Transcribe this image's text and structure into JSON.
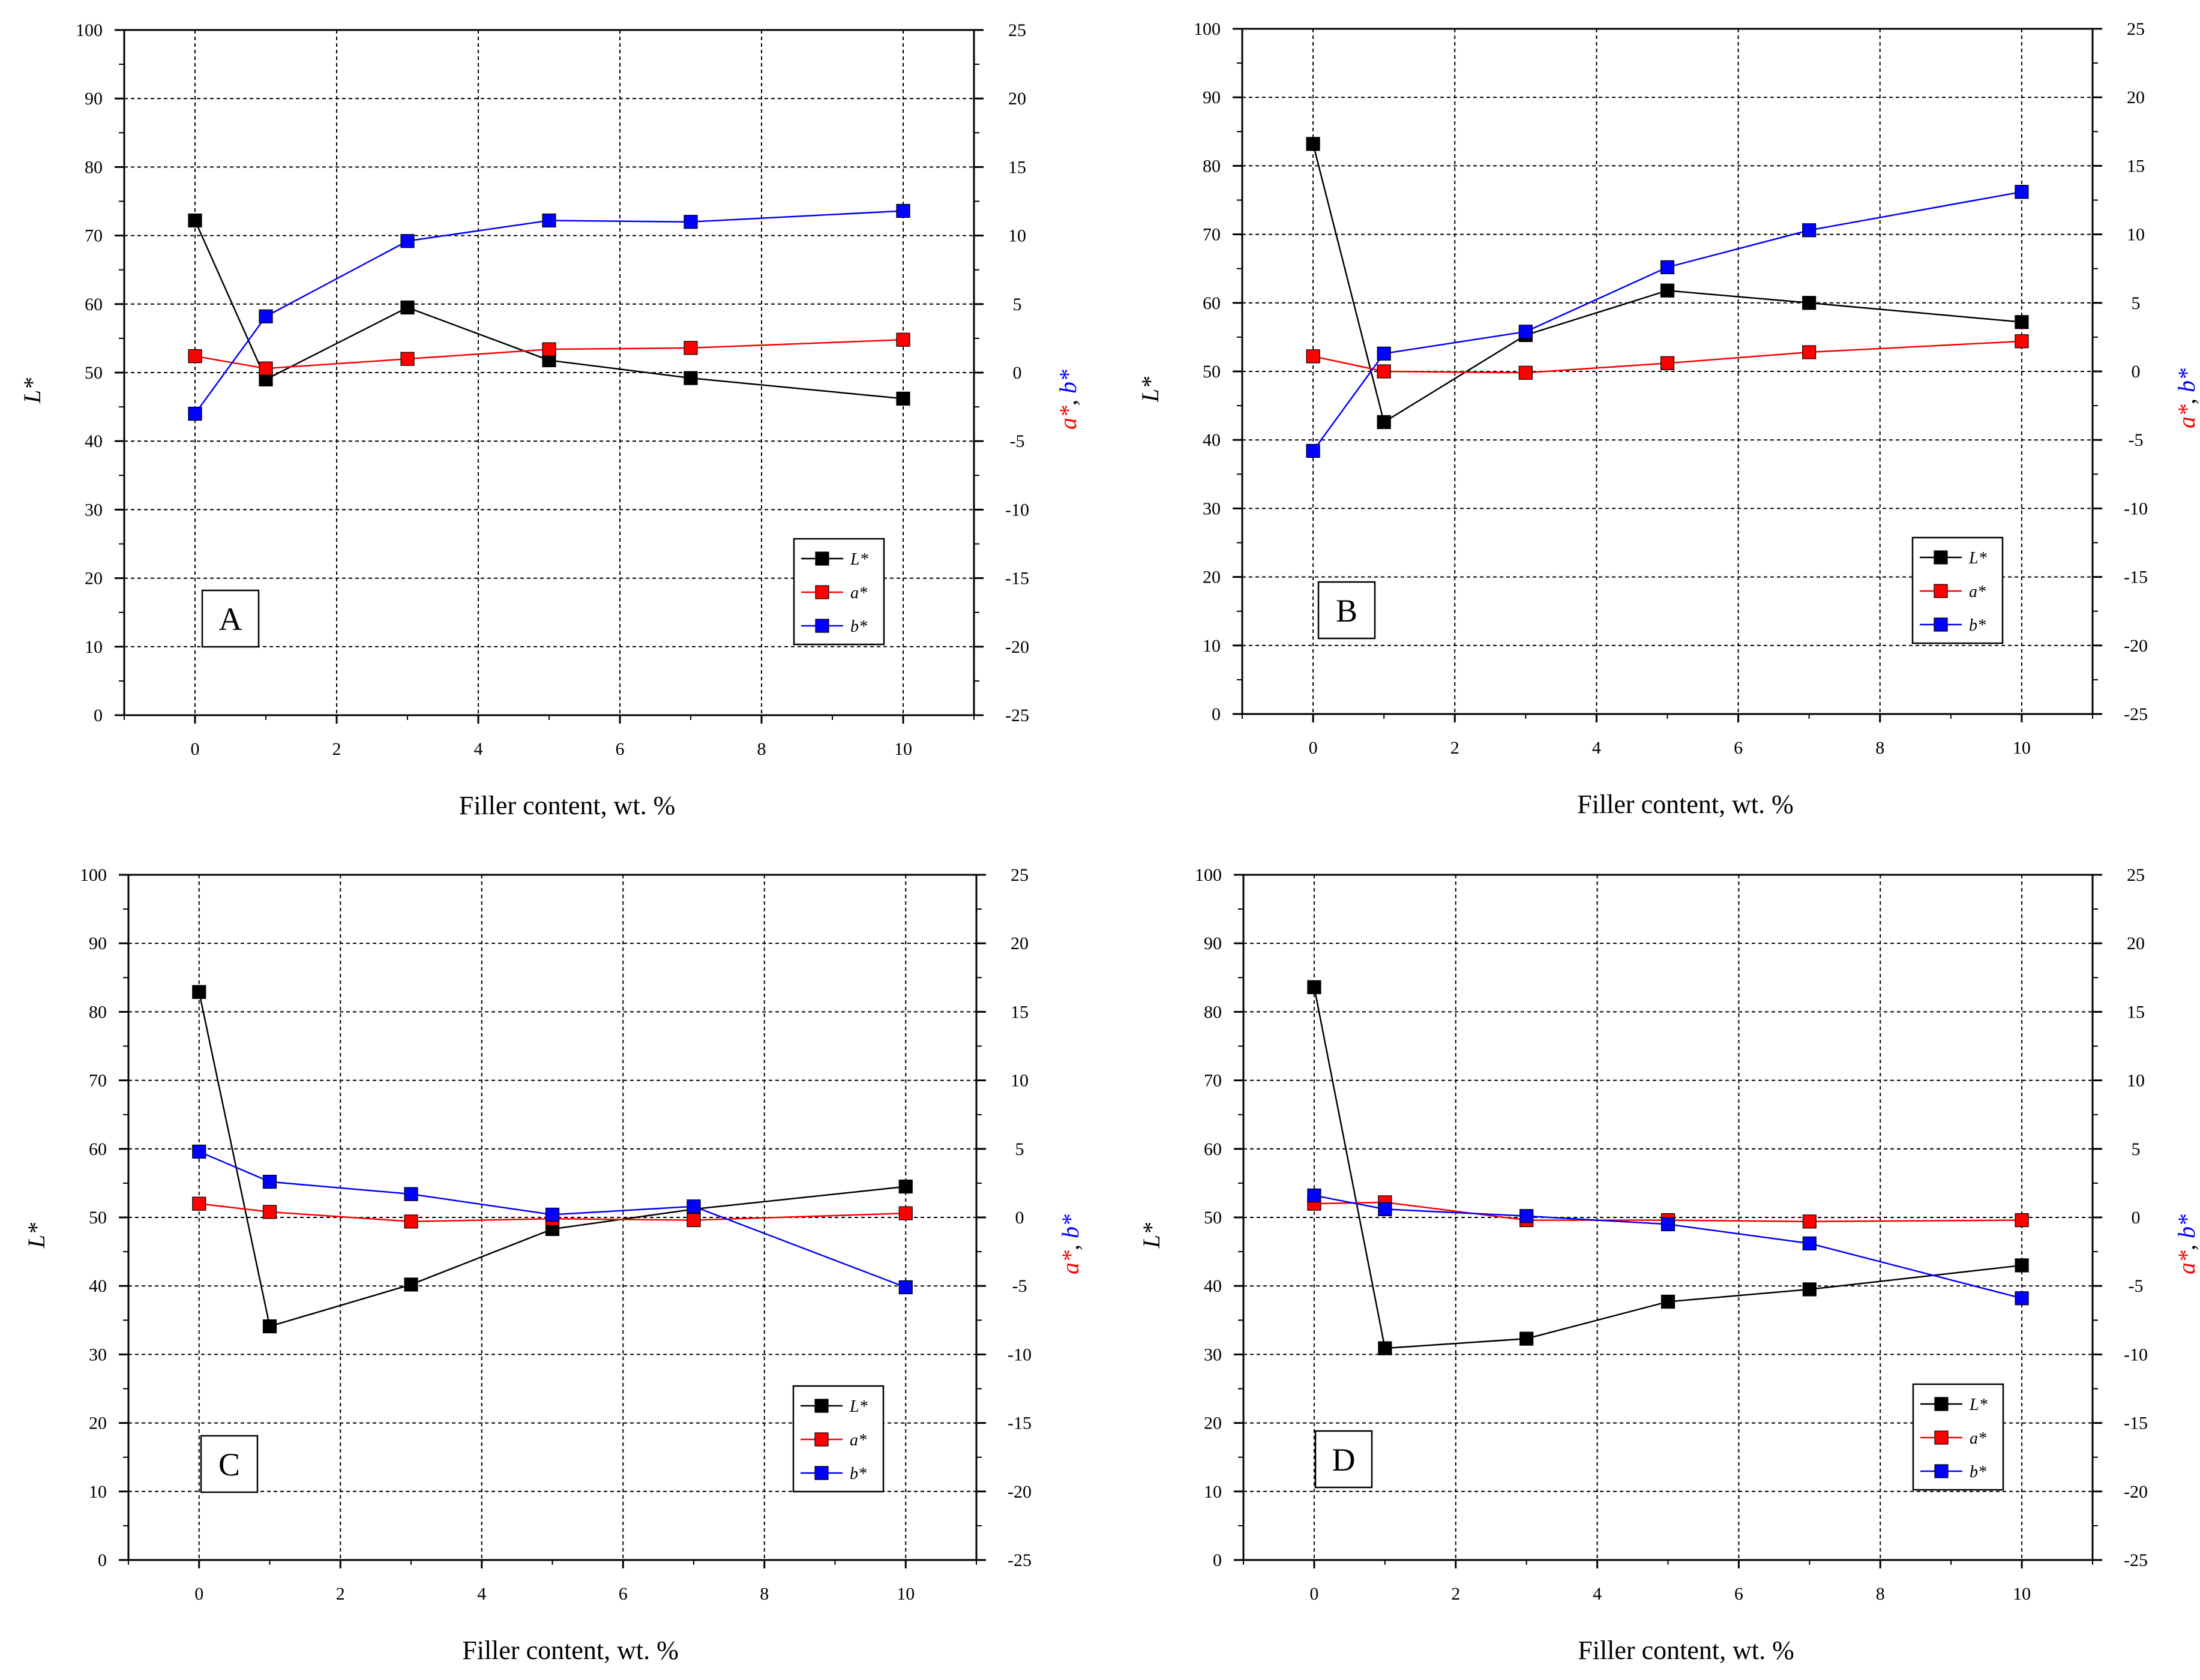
{
  "chart_data": [
    {
      "type": "line",
      "panel_label": "A",
      "xlabel": "Filler content, wt. %",
      "ylabel_left": "L*",
      "ylabel_right_a": "a*",
      "ylabel_right_sep": ", ",
      "ylabel_right_b": "b*",
      "xlim": [
        -1,
        11
      ],
      "ylim_left": [
        0,
        100
      ],
      "ylim_right": [
        -25,
        25
      ],
      "x_ticks": [
        "0",
        "2",
        "4",
        "6",
        "8",
        "10"
      ],
      "y_left_ticks": [
        "0",
        "10",
        "20",
        "30",
        "40",
        "50",
        "60",
        "70",
        "80",
        "90",
        "100"
      ],
      "y_right_ticks": [
        "-25",
        "-20",
        "-15",
        "-10",
        "-5",
        "0",
        "5",
        "10",
        "15",
        "20",
        "25"
      ],
      "grid": true,
      "legend_position": "bottom-right",
      "x": [
        0,
        1,
        3,
        5,
        7,
        10
      ],
      "series": [
        {
          "name": "L*",
          "axis": "left",
          "color": "#000000",
          "values": [
            72.2,
            49.0,
            59.5,
            51.8,
            49.2,
            46.2
          ]
        },
        {
          "name": "a*",
          "axis": "right",
          "color": "#ff0000",
          "values": [
            1.2,
            0.3,
            1.0,
            1.7,
            1.8,
            2.4
          ]
        },
        {
          "name": "b*",
          "axis": "right",
          "color": "#0000ff",
          "values": [
            -3.0,
            4.1,
            9.6,
            11.1,
            11.0,
            11.8
          ]
        }
      ]
    },
    {
      "type": "line",
      "panel_label": "B",
      "xlabel": "Filler content, wt. %",
      "ylabel_left": "L*",
      "ylabel_right_a": "a*",
      "ylabel_right_sep": ", ",
      "ylabel_right_b": "b*",
      "xlim": [
        -1,
        11
      ],
      "ylim_left": [
        0,
        100
      ],
      "ylim_right": [
        -25,
        25
      ],
      "x_ticks": [
        "0",
        "2",
        "4",
        "6",
        "8",
        "10"
      ],
      "y_left_ticks": [
        "0",
        "10",
        "20",
        "30",
        "40",
        "50",
        "60",
        "70",
        "80",
        "90",
        "100"
      ],
      "y_right_ticks": [
        "-25",
        "-20",
        "-15",
        "-10",
        "-5",
        "0",
        "5",
        "10",
        "15",
        "20",
        "25"
      ],
      "grid": true,
      "legend_position": "bottom-right",
      "x": [
        0,
        1,
        3,
        5,
        7,
        10
      ],
      "series": [
        {
          "name": "L*",
          "axis": "left",
          "color": "#000000",
          "values": [
            83.2,
            42.6,
            55.3,
            61.8,
            60.0,
            57.2
          ]
        },
        {
          "name": "a*",
          "axis": "right",
          "color": "#ff0000",
          "values": [
            1.1,
            0.0,
            -0.1,
            0.6,
            1.4,
            2.2
          ]
        },
        {
          "name": "b*",
          "axis": "right",
          "color": "#0000ff",
          "values": [
            -5.8,
            1.3,
            2.9,
            7.6,
            10.3,
            13.1
          ]
        }
      ]
    },
    {
      "type": "line",
      "panel_label": "C",
      "xlabel": "Filler content, wt. %",
      "ylabel_left": "L*",
      "ylabel_right_a": "a*",
      "ylabel_right_sep": ", ",
      "ylabel_right_b": "b*",
      "xlim": [
        -1,
        11
      ],
      "ylim_left": [
        0,
        100
      ],
      "ylim_right": [
        -25,
        25
      ],
      "x_ticks": [
        "0",
        "2",
        "4",
        "6",
        "8",
        "10"
      ],
      "y_left_ticks": [
        "0",
        "10",
        "20",
        "30",
        "40",
        "50",
        "60",
        "70",
        "80",
        "90",
        "100"
      ],
      "y_right_ticks": [
        "-25",
        "-20",
        "-15",
        "-10",
        "-5",
        "0",
        "5",
        "10",
        "15",
        "20",
        "25"
      ],
      "grid": true,
      "legend_position": "bottom-right",
      "x": [
        0,
        1,
        3,
        5,
        7,
        10
      ],
      "series": [
        {
          "name": "L*",
          "axis": "left",
          "color": "#000000",
          "values": [
            82.9,
            34.1,
            40.2,
            48.3,
            51.2,
            54.5
          ]
        },
        {
          "name": "a*",
          "axis": "right",
          "color": "#ff0000",
          "values": [
            1.0,
            0.4,
            -0.3,
            -0.1,
            -0.2,
            0.3
          ]
        },
        {
          "name": "b*",
          "axis": "right",
          "color": "#0000ff",
          "values": [
            4.8,
            2.6,
            1.7,
            0.2,
            0.8,
            -5.1
          ]
        }
      ]
    },
    {
      "type": "line",
      "panel_label": "D",
      "xlabel": "Filler content, wt. %",
      "ylabel_left": "L*",
      "ylabel_right_a": "a*",
      "ylabel_right_sep": ", ",
      "ylabel_right_b": "b*",
      "xlim": [
        -1,
        11
      ],
      "ylim_left": [
        0,
        100
      ],
      "ylim_right": [
        -25,
        25
      ],
      "x_ticks": [
        "0",
        "2",
        "4",
        "6",
        "8",
        "10"
      ],
      "y_left_ticks": [
        "0",
        "10",
        "20",
        "30",
        "40",
        "50",
        "60",
        "70",
        "80",
        "90",
        "100"
      ],
      "y_right_ticks": [
        "-25",
        "-20",
        "-15",
        "-10",
        "-5",
        "0",
        "5",
        "10",
        "15",
        "20",
        "25"
      ],
      "grid": true,
      "legend_position": "bottom-right",
      "x": [
        0,
        1,
        3,
        5,
        7,
        10
      ],
      "series": [
        {
          "name": "L*",
          "axis": "left",
          "color": "#000000",
          "values": [
            83.6,
            30.9,
            32.3,
            37.7,
            39.5,
            43.0
          ]
        },
        {
          "name": "a*",
          "axis": "right",
          "color": "#ff0000",
          "values": [
            1.0,
            1.1,
            -0.2,
            -0.2,
            -0.3,
            -0.2
          ]
        },
        {
          "name": "b*",
          "axis": "right",
          "color": "#0000ff",
          "values": [
            1.6,
            0.6,
            0.1,
            -0.5,
            -1.9,
            -5.9
          ]
        }
      ]
    }
  ]
}
